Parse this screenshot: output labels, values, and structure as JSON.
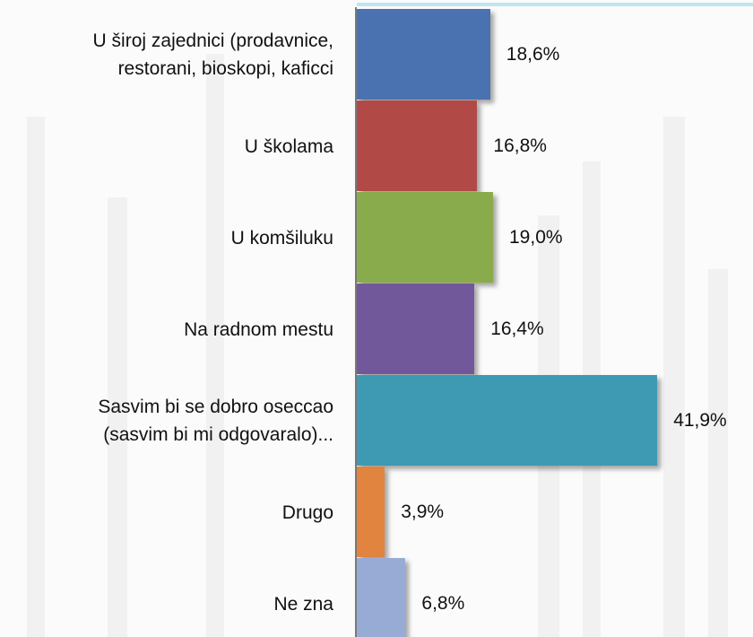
{
  "chart_data": {
    "type": "bar",
    "orientation": "horizontal",
    "categories": [
      "U široj zajednici (prodavnice,\nrestorani, bioskopi, kaficci",
      "U školama",
      "U komšiluku",
      "Na radnom mestu",
      "Sasvim bi se dobro oseccao\n(sasvim bi mi odgovaralo)...",
      "Drugo",
      "Ne zna"
    ],
    "values": [
      18.6,
      16.8,
      19.0,
      16.4,
      41.9,
      3.9,
      6.8
    ],
    "value_labels": [
      "18,6%",
      "16,8%",
      "19,0%",
      "16,4%",
      "41,9%",
      "3,9%",
      "6,8%"
    ],
    "colors": [
      "#4a72b0",
      "#b14a47",
      "#8aab4c",
      "#71589a",
      "#3e9ab2",
      "#e0843f",
      "#98abd4"
    ]
  }
}
